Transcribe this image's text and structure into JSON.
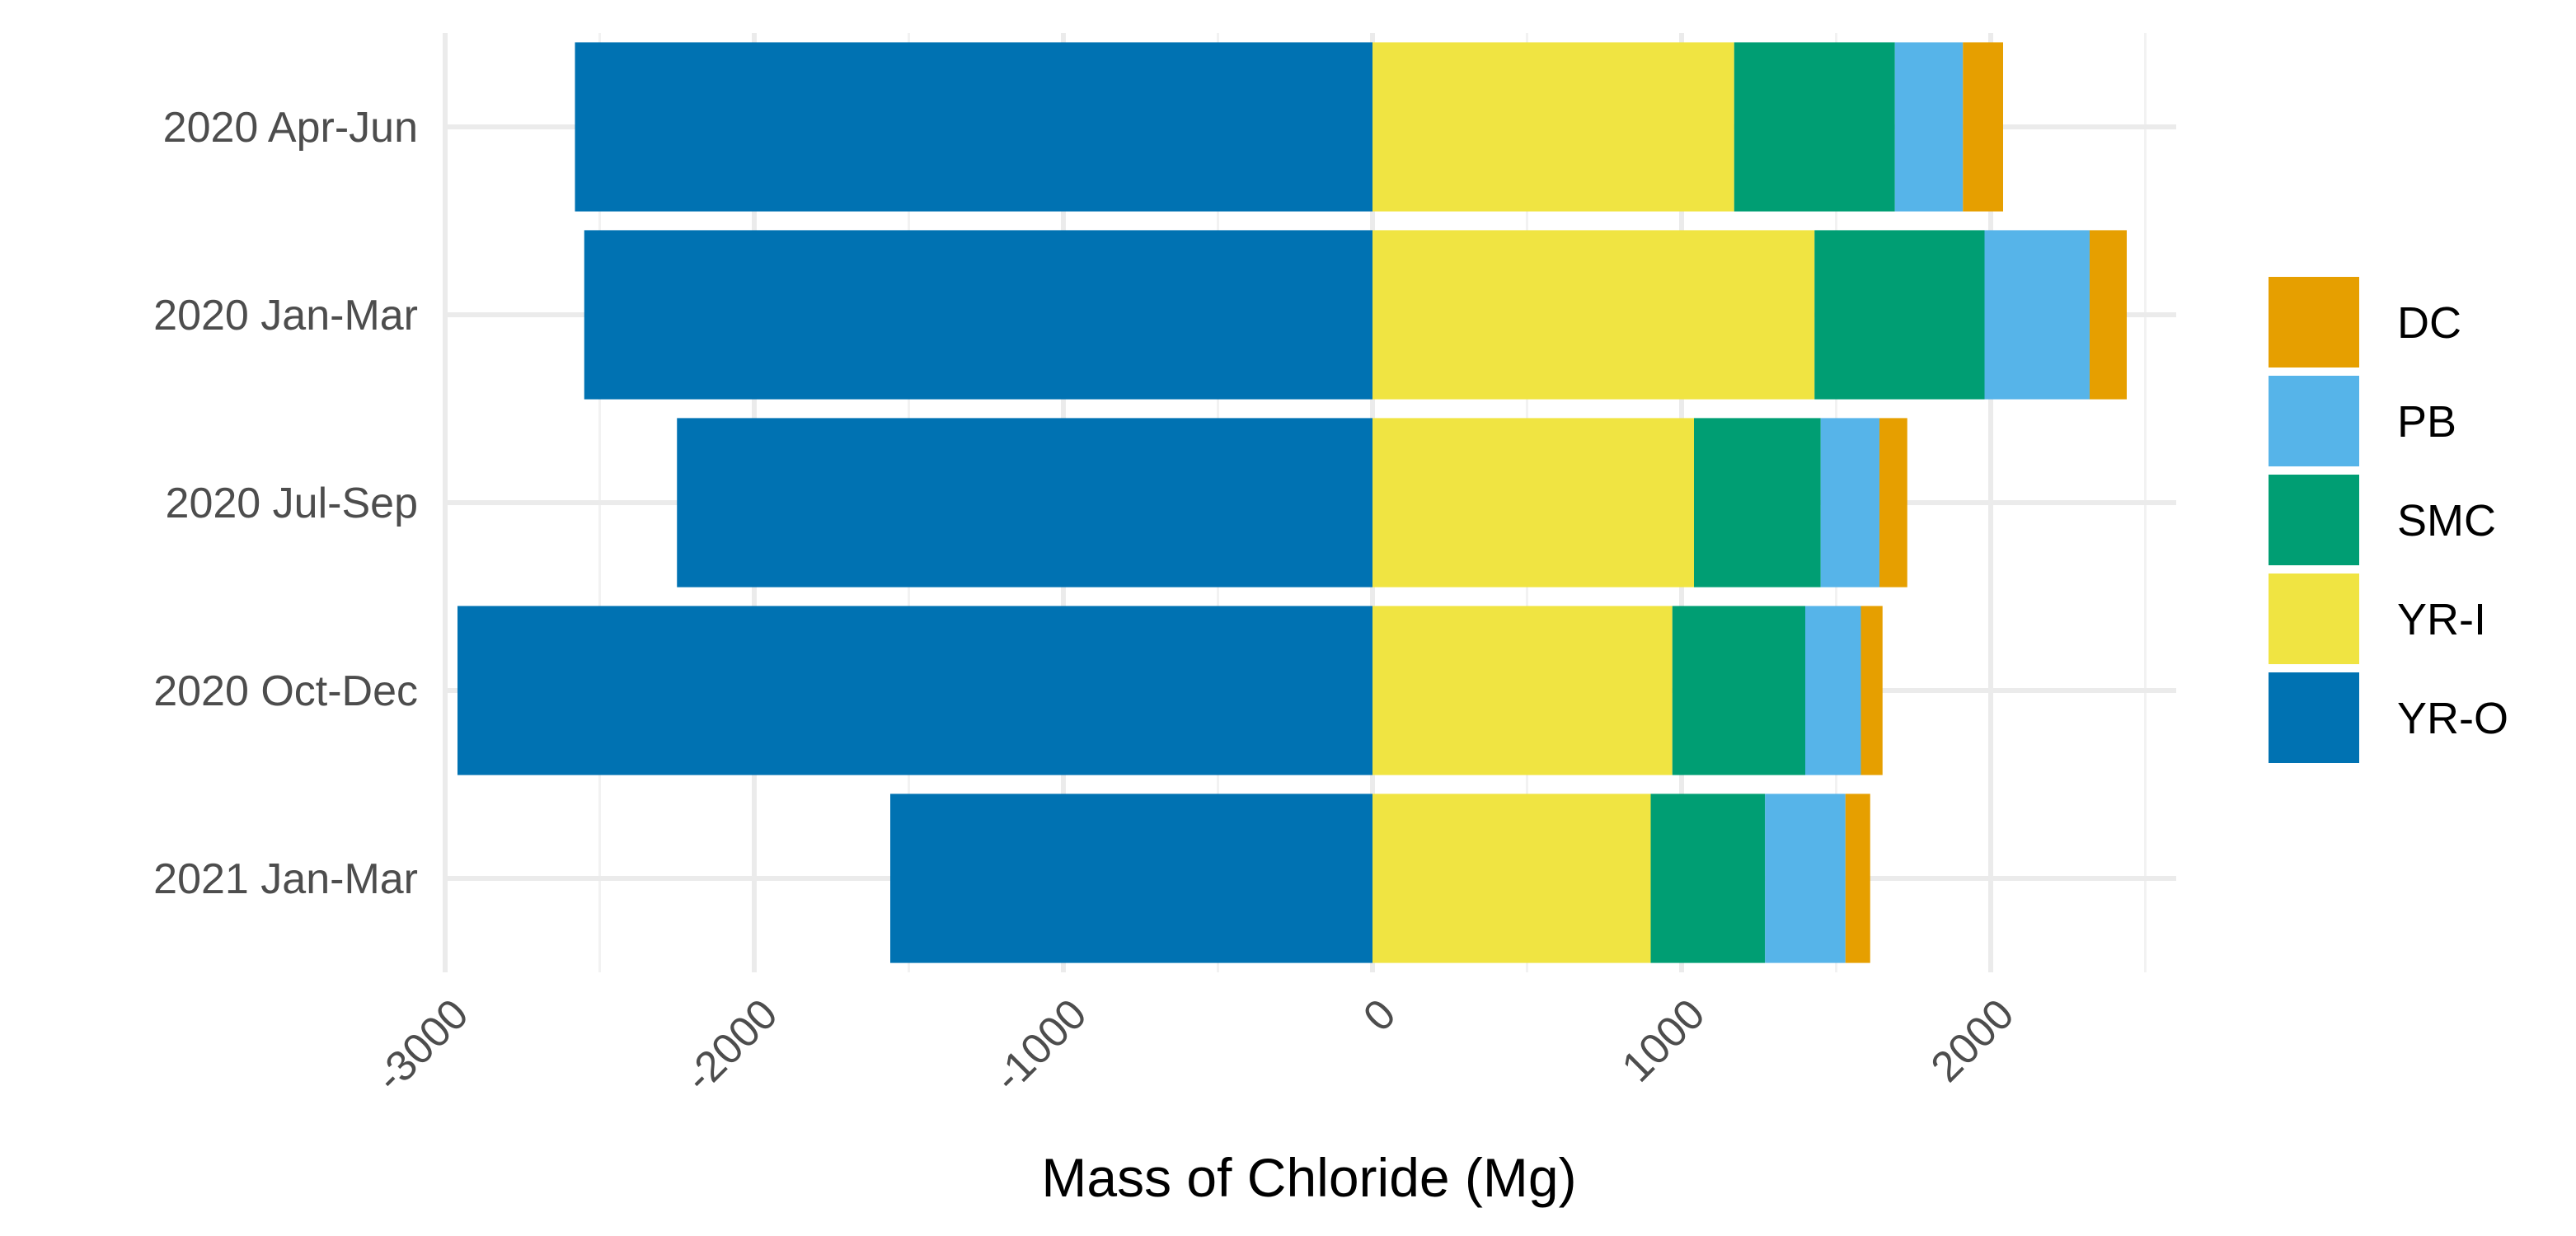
{
  "chart_data": {
    "type": "bar",
    "orientation": "horizontal",
    "stacked": true,
    "title": "",
    "xlabel": "Mass of Chloride (Mg)",
    "ylabel": "",
    "xlim": [
      -3000,
      2600
    ],
    "x_ticks": [
      -3000,
      -2000,
      -1000,
      0,
      1000,
      2000
    ],
    "x_tick_labels": [
      "-3000",
      "-2000",
      "-1000",
      "0",
      "1000",
      "2000"
    ],
    "grid": true,
    "legend_position": "right",
    "categories": [
      "2020 Apr-Jun",
      "2020 Jan-Mar",
      "2020 Jul-Sep",
      "2020 Oct-Dec",
      "2021 Jan-Mar"
    ],
    "series": [
      {
        "name": "YR-O",
        "color": "#0072B2",
        "values": [
          -2580,
          -2550,
          -2250,
          -2960,
          -1560
        ]
      },
      {
        "name": "YR-I",
        "color": "#F0E442",
        "values": [
          1170,
          1430,
          1040,
          970,
          900
        ]
      },
      {
        "name": "SMC",
        "color": "#009E73",
        "values": [
          520,
          550,
          410,
          430,
          370
        ]
      },
      {
        "name": "PB",
        "color": "#56B4E9",
        "values": [
          220,
          340,
          190,
          180,
          260
        ]
      },
      {
        "name": "DC",
        "color": "#E69F00",
        "values": [
          130,
          120,
          90,
          70,
          80
        ]
      }
    ],
    "legend_order": [
      "DC",
      "PB",
      "SMC",
      "YR-I",
      "YR-O"
    ]
  }
}
